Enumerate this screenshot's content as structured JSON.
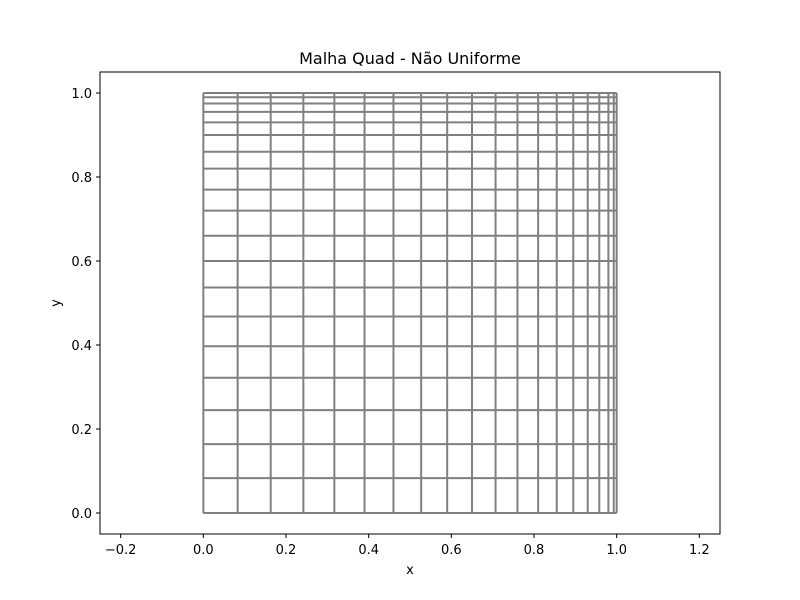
{
  "chart_data": {
    "type": "line",
    "title": "Malha Quad - Não Uniforme",
    "xlabel": "x",
    "ylabel": "y",
    "xlim": [
      -0.25,
      1.25
    ],
    "ylim": [
      -0.05,
      1.05
    ],
    "x_ticks": [
      -0.2,
      0.0,
      0.2,
      0.4,
      0.6,
      0.8,
      1.0,
      1.2
    ],
    "x_tick_labels": [
      "−0.2",
      "0.0",
      "0.2",
      "0.4",
      "0.6",
      "0.8",
      "1.0",
      "1.2"
    ],
    "y_ticks": [
      0.0,
      0.2,
      0.4,
      0.6,
      0.8,
      1.0
    ],
    "y_tick_labels": [
      "0.0",
      "0.2",
      "0.4",
      "0.6",
      "0.8",
      "1.0"
    ],
    "grid": false,
    "mesh_x": [
      0.0,
      0.083,
      0.163,
      0.242,
      0.317,
      0.39,
      0.46,
      0.527,
      0.59,
      0.65,
      0.707,
      0.76,
      0.81,
      0.855,
      0.895,
      0.93,
      0.958,
      0.98,
      0.993,
      1.0
    ],
    "mesh_y": [
      0.0,
      0.083,
      0.164,
      0.245,
      0.322,
      0.397,
      0.468,
      0.537,
      0.6,
      0.66,
      0.72,
      0.77,
      0.82,
      0.86,
      0.9,
      0.93,
      0.955,
      0.975,
      0.99,
      1.0
    ],
    "line_color": "#808080"
  }
}
